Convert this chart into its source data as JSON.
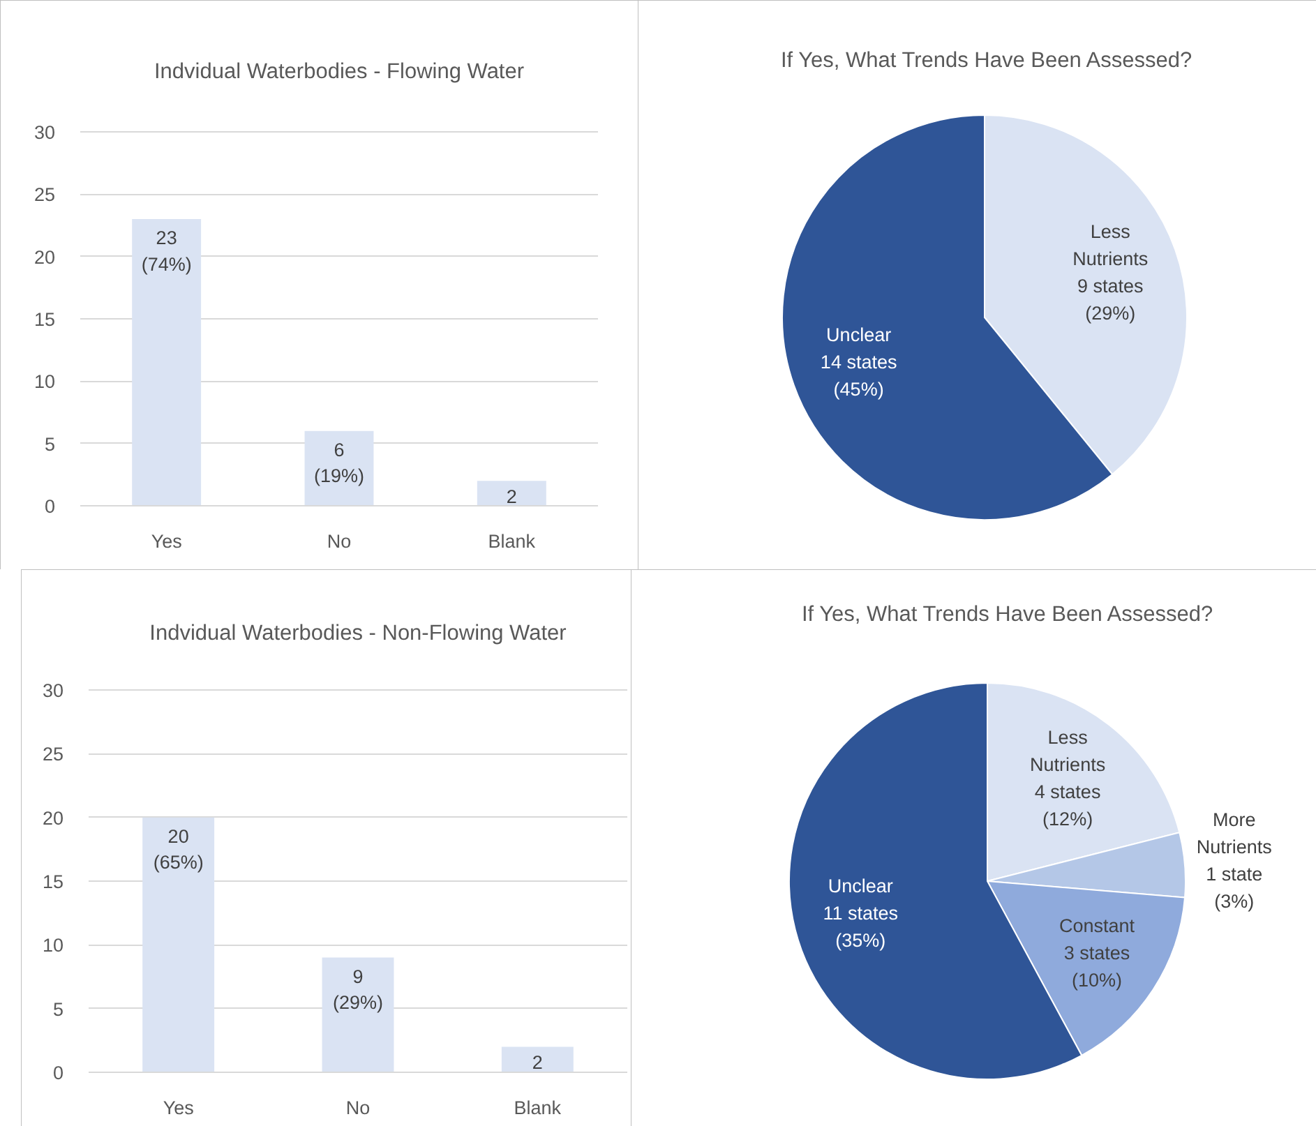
{
  "chart_data": [
    {
      "type": "bar",
      "title": "Indvidual Waterbodies - Flowing Water",
      "categories": [
        "Yes",
        "No",
        "Blank"
      ],
      "values": [
        23,
        6,
        2
      ],
      "color": "#dae3f3",
      "value_labels": [
        "23\n(74%)",
        "6\n(19%)",
        "2"
      ],
      "ylim": [
        0,
        30
      ],
      "yticks": [
        0,
        5,
        10,
        15,
        20,
        25,
        30
      ],
      "grid": "y"
    },
    {
      "type": "pie",
      "title": "If Yes, What Trends Have Been Assessed?",
      "categories": [
        "Less Nutrients",
        "Unclear"
      ],
      "values": [
        9,
        14
      ],
      "colors": [
        "#dae3f3",
        "#2f5597"
      ],
      "value_labels": [
        "9 states\n(29%)",
        "14 states\n(45%)"
      ]
    },
    {
      "type": "bar",
      "title": "Indvidual Waterbodies - Non-Flowing Water",
      "categories": [
        "Yes",
        "No",
        "Blank"
      ],
      "values": [
        20,
        9,
        2
      ],
      "color": "#dae3f3",
      "value_labels": [
        "20\n(65%)",
        "9\n(29%)",
        "2"
      ],
      "ylim": [
        0,
        30
      ],
      "yticks": [
        0,
        5,
        10,
        15,
        20,
        25,
        30
      ],
      "grid": "y"
    },
    {
      "type": "pie",
      "title": "If Yes, What Trends Have Been Assessed?",
      "categories": [
        "Less Nutrients",
        "More Nutrients",
        "Constant",
        "Unclear"
      ],
      "values": [
        4,
        1,
        3,
        11
      ],
      "colors": [
        "#dae3f3",
        "#b4c7e7",
        "#8faadc",
        "#2f5597"
      ],
      "value_labels": [
        "4 states\n(12%)",
        "1 state\n(3%)",
        "3 states\n(10%)",
        "11 states\n(35%)"
      ]
    }
  ]
}
